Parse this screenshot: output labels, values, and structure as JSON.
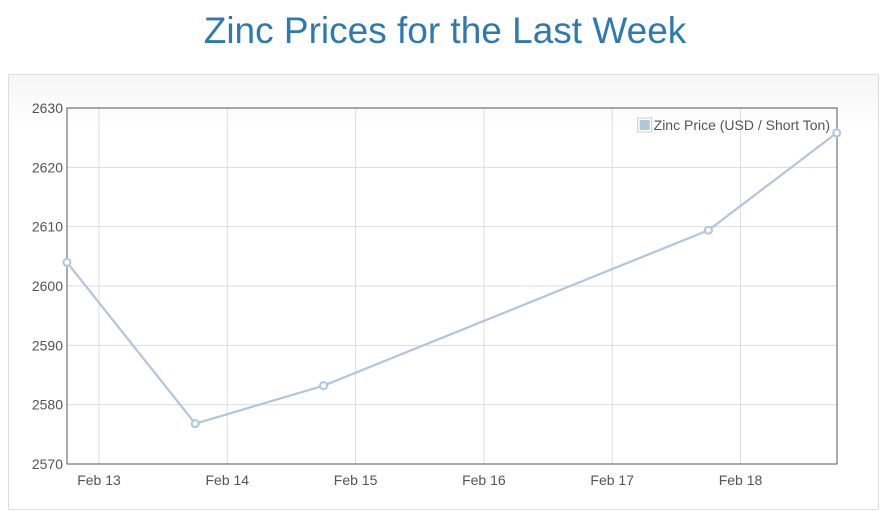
{
  "page": {
    "title": "Zinc Prices for the Last Week"
  },
  "chart_data": {
    "type": "line",
    "title": "Zinc Prices for the Last Week",
    "xlabel": "",
    "ylabel": "",
    "x_tick_labels": [
      "Feb 13",
      "Feb 14",
      "Feb 15",
      "Feb 16",
      "Feb 17",
      "Feb 18"
    ],
    "y_tick_labels": [
      "2570",
      "2580",
      "2590",
      "2600",
      "2610",
      "2620",
      "2630"
    ],
    "ylim": [
      2570,
      2630
    ],
    "xlim": [
      "Feb 12 18:00",
      "Feb 18 18:00"
    ],
    "grid": true,
    "legend_position": "top-right",
    "series": [
      {
        "name": "Zinc Price (USD / Short Ton)",
        "color": "#b0c6dc",
        "points": [
          {
            "x": "Feb 12 18:00",
            "y": 2604
          },
          {
            "x": "Feb 13 18:00",
            "y": 2576.8
          },
          {
            "x": "Feb 14 18:00",
            "y": 2583.2
          },
          {
            "x": "Feb 17 18:00",
            "y": 2609.4
          },
          {
            "x": "Feb 18 18:00",
            "y": 2625.8
          }
        ]
      }
    ]
  }
}
